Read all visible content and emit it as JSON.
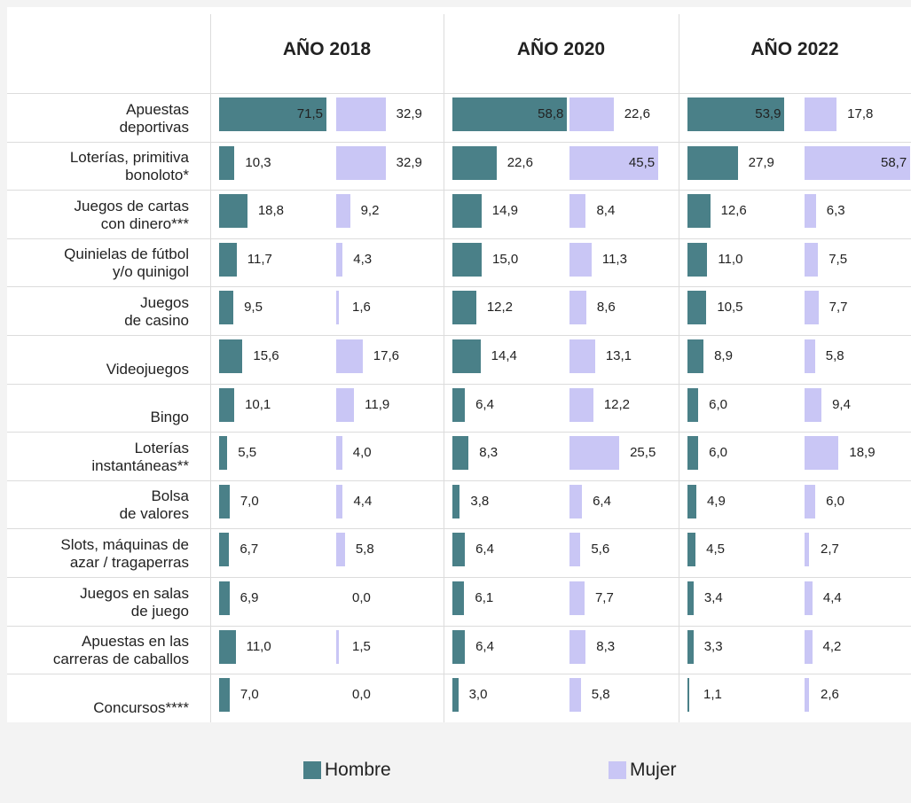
{
  "chart_data": {
    "type": "bar",
    "categories": [
      "Apuestas\ndeportivas",
      "Loterías, primitiva\nbonoloto*",
      "Juegos de cartas\ncon dinero***",
      "Quinielas de fútbol\ny/o quinigol",
      "Juegos\nde casino",
      "Videojuegos",
      "Bingo",
      "Loterías\ninstantáneas**",
      "Bolsa\nde valores",
      "Slots, máquinas de\nazar / tragaperras",
      "Juegos en salas\nde juego",
      "Apuestas en las\ncarreras de caballos",
      "Concursos****"
    ],
    "series": [
      {
        "name": "Hombre",
        "color": "#4a8088"
      },
      {
        "name": "Mujer",
        "color": "#c9c6f5"
      }
    ],
    "panels": [
      {
        "title": "AÑO 2018",
        "xlim": [
          0,
          78
        ],
        "values": [
          [
            71.5,
            10.3,
            18.8,
            11.7,
            9.5,
            15.6,
            10.1,
            5.5,
            7.0,
            6.7,
            6.9,
            11.0,
            7.0
          ],
          [
            32.9,
            32.9,
            9.2,
            4.3,
            1.6,
            17.6,
            11.9,
            4.0,
            4.4,
            5.8,
            0.0,
            1.5,
            0.0
          ]
        ],
        "value_labels": [
          [
            "71,5",
            "10,3",
            "18,8",
            "11,7",
            "9,5",
            "15,6",
            "10,1",
            "5,5",
            "7,0",
            "6,7",
            "6,9",
            "11,0",
            "7,0"
          ],
          [
            "32,9",
            "32,9",
            "9,2",
            "4,3",
            "1,6",
            "17,6",
            "11,9",
            "4,0",
            "4,4",
            "5,8",
            "0,0",
            "1,5",
            "0,0"
          ]
        ]
      },
      {
        "title": "AÑO 2020",
        "xlim": [
          0,
          60
        ],
        "values": [
          [
            58.8,
            22.6,
            14.9,
            15.0,
            12.2,
            14.4,
            6.4,
            8.3,
            3.8,
            6.4,
            6.1,
            6.4,
            3.0
          ],
          [
            22.6,
            45.5,
            8.4,
            11.3,
            8.6,
            13.1,
            12.2,
            25.5,
            6.4,
            5.6,
            7.7,
            8.3,
            5.8
          ]
        ],
        "value_labels": [
          [
            "58,8",
            "22,6",
            "14,9",
            "15,0",
            "12,2",
            "14,4",
            "6,4",
            "8,3",
            "3,8",
            "6,4",
            "6,1",
            "6,4",
            "3,0"
          ],
          [
            "22,6",
            "45,5",
            "8,4",
            "11,3",
            "8,6",
            "13,1",
            "12,2",
            "25,5",
            "6,4",
            "5,6",
            "7,7",
            "8,3",
            "5,8"
          ]
        ]
      },
      {
        "title": "AÑO 2022",
        "xlim": [
          0,
          65
        ],
        "values": [
          [
            53.9,
            27.9,
            12.6,
            11.0,
            10.5,
            8.9,
            6.0,
            6.0,
            4.9,
            4.5,
            3.4,
            3.3,
            1.1
          ],
          [
            17.8,
            58.7,
            6.3,
            7.5,
            7.7,
            5.8,
            9.4,
            18.9,
            6.0,
            2.7,
            4.4,
            4.2,
            2.6
          ]
        ],
        "value_labels": [
          [
            "53,9",
            "27,9",
            "12,6",
            "11,0",
            "10,5",
            "8,9",
            "6,0",
            "6,0",
            "4,9",
            "4,5",
            "3,4",
            "3,3",
            "1,1"
          ],
          [
            "17,8",
            "58,7",
            "6,3",
            "7,5",
            "7,7",
            "5,8",
            "9,4",
            "18,9",
            "6,0",
            "2,7",
            "4,4",
            "4,2",
            "2,6"
          ]
        ]
      }
    ]
  }
}
